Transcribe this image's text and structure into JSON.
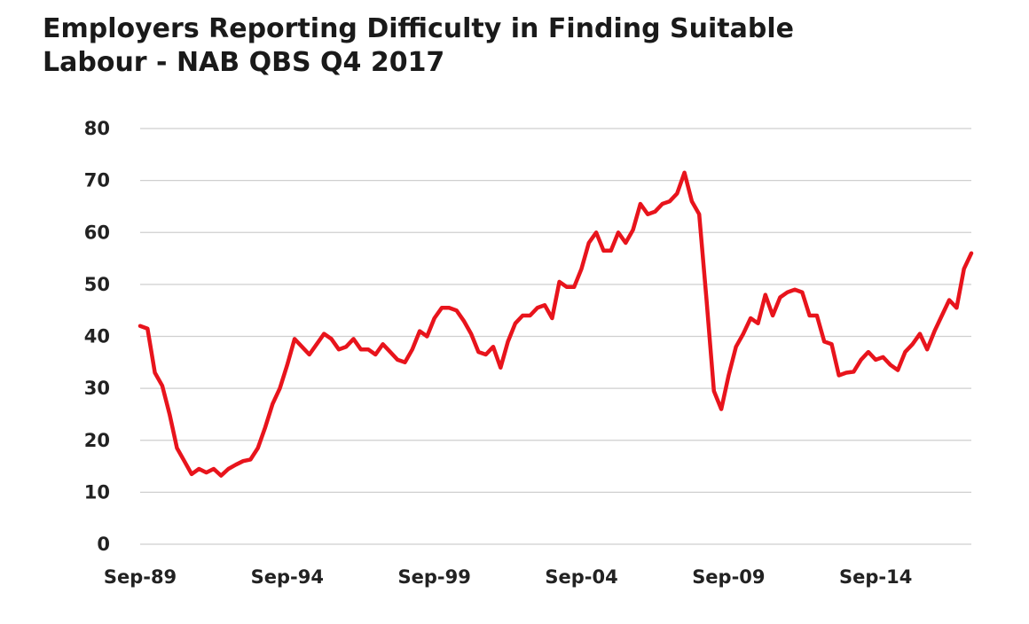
{
  "chart_data": {
    "type": "line",
    "title": "Employers Reporting Difficulty in Finding Suitable\nLabour - NAB QBS Q4 2017",
    "xlabel": "",
    "ylabel": "",
    "ylim": [
      0,
      80
    ],
    "yticks": [
      0,
      10,
      20,
      30,
      40,
      50,
      60,
      70,
      80
    ],
    "xlim": [
      "Sep-89",
      "Dec-17"
    ],
    "xticks": [
      {
        "label": "Sep-89",
        "at": "Sep-89"
      },
      {
        "label": "Sep-94",
        "at": "Sep-94"
      },
      {
        "label": "Sep-99",
        "at": "Sep-99"
      },
      {
        "label": "Sep-04",
        "at": "Sep-04"
      },
      {
        "label": "Sep-09",
        "at": "Sep-09"
      },
      {
        "label": "Sep-14",
        "at": "Sep-14"
      }
    ],
    "grid": true,
    "legend": "none",
    "series": [
      {
        "color": "#e8141c",
        "x": [
          "Sep-89",
          "Dec-89",
          "Mar-90",
          "Jun-90",
          "Sep-90",
          "Dec-90",
          "Mar-91",
          "Jun-91",
          "Sep-91",
          "Dec-91",
          "Mar-92",
          "Jun-92",
          "Sep-92",
          "Dec-92",
          "Mar-93",
          "Jun-93",
          "Sep-93",
          "Dec-93",
          "Mar-94",
          "Jun-94",
          "Sep-94",
          "Dec-94",
          "Mar-95",
          "Jun-95",
          "Sep-95",
          "Dec-95",
          "Mar-96",
          "Jun-96",
          "Sep-96",
          "Dec-96",
          "Mar-97",
          "Jun-97",
          "Sep-97",
          "Dec-97",
          "Mar-98",
          "Jun-98",
          "Sep-98",
          "Dec-98",
          "Mar-99",
          "Jun-99",
          "Sep-99",
          "Dec-99",
          "Mar-00",
          "Jun-00",
          "Sep-00",
          "Dec-00",
          "Mar-01",
          "Jun-01",
          "Sep-01",
          "Dec-01",
          "Mar-02",
          "Jun-02",
          "Sep-02",
          "Dec-02",
          "Mar-03",
          "Jun-03",
          "Sep-03",
          "Dec-03",
          "Mar-04",
          "Jun-04",
          "Sep-04",
          "Dec-04",
          "Mar-05",
          "Jun-05",
          "Sep-05",
          "Dec-05",
          "Mar-06",
          "Jun-06",
          "Sep-06",
          "Dec-06",
          "Mar-07",
          "Jun-07",
          "Sep-07",
          "Dec-07",
          "Mar-08",
          "Jun-08",
          "Sep-08",
          "Dec-08",
          "Mar-09",
          "Jun-09",
          "Sep-09",
          "Dec-09",
          "Mar-10",
          "Jun-10",
          "Sep-10",
          "Dec-10",
          "Mar-11",
          "Jun-11",
          "Sep-11",
          "Dec-11",
          "Mar-12",
          "Jun-12",
          "Sep-12",
          "Dec-12",
          "Mar-13",
          "Jun-13",
          "Sep-13",
          "Dec-13",
          "Mar-14",
          "Jun-14",
          "Sep-14",
          "Dec-14",
          "Mar-15",
          "Jun-15",
          "Sep-15",
          "Dec-15",
          "Mar-16",
          "Jun-16",
          "Sep-16",
          "Dec-16",
          "Mar-17",
          "Jun-17",
          "Sep-17",
          "Dec-17"
        ],
        "values": [
          42,
          41.5,
          33,
          30.5,
          25,
          18.5,
          16,
          13.5,
          14.5,
          13.8,
          14.5,
          13.2,
          14.5,
          15.3,
          16,
          16.3,
          18.5,
          22.5,
          27,
          30,
          34.5,
          39.5,
          38,
          36.5,
          38.5,
          40.5,
          39.5,
          37.5,
          38,
          39.5,
          37.5,
          37.5,
          36.5,
          38.5,
          37,
          35.5,
          35,
          37.5,
          41,
          40,
          43.5,
          45.5,
          45.5,
          45,
          43,
          40.5,
          37,
          36.5,
          38,
          34,
          39,
          42.5,
          44,
          44,
          45.5,
          46,
          43.5,
          50.5,
          49.5,
          49.5,
          53,
          58,
          60,
          56.5,
          56.5,
          60,
          58,
          60.5,
          65.5,
          63.5,
          64,
          65.5,
          66,
          67.5,
          71.5,
          66,
          63.5,
          47,
          29.5,
          26,
          32.5,
          38,
          40.5,
          43.5,
          42.5,
          48,
          44,
          47.5,
          48.5,
          49,
          48.5,
          44,
          44,
          39,
          38.5,
          32.5,
          33,
          33.2,
          35.5,
          37,
          35.5,
          36,
          34.5,
          33.5,
          37,
          38.5,
          40.5,
          37.5,
          41,
          44,
          47,
          45.5,
          53,
          56
        ]
      }
    ]
  }
}
